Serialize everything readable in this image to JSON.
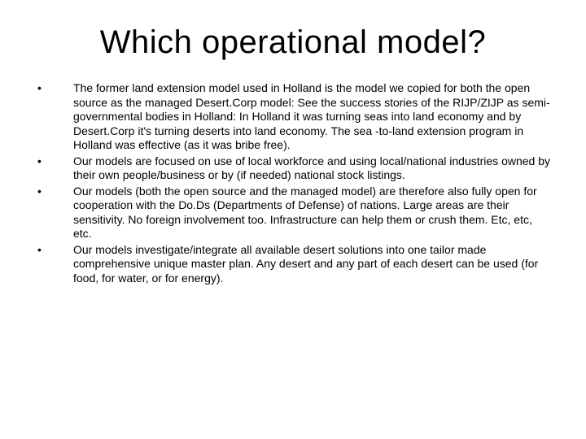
{
  "slide": {
    "title": "Which operational model?",
    "title_fontsize": 40,
    "body_fontsize": 14,
    "background_color": "#ffffff",
    "text_color": "#000000",
    "bullets": [
      "The former land extension model used in Holland is the model we copied for both the open source as the managed Desert.Corp model: See the success stories of the RIJP/ZIJP as semi-governmental bodies in Holland: In Holland it was turning seas into land economy and by Desert.Corp it's turning deserts into land economy. The sea -to-land extension program in Holland was effective (as it was bribe free).",
      "Our models are focused on use of local workforce and using local/national industries owned by their own people/business or by (if needed) national stock listings.",
      "Our models (both the open source and the managed model) are therefore also fully open for cooperation with the Do.Ds (Departments of Defense) of nations. Large areas are their sensitivity. No foreign involvement too. Infrastructure can help them or crush them. Etc, etc, etc.",
      "Our models investigate/integrate all available desert solutions into one tailor made comprehensive unique master plan. Any desert and any part of each desert can be used (for food, for water, or for energy)."
    ]
  }
}
